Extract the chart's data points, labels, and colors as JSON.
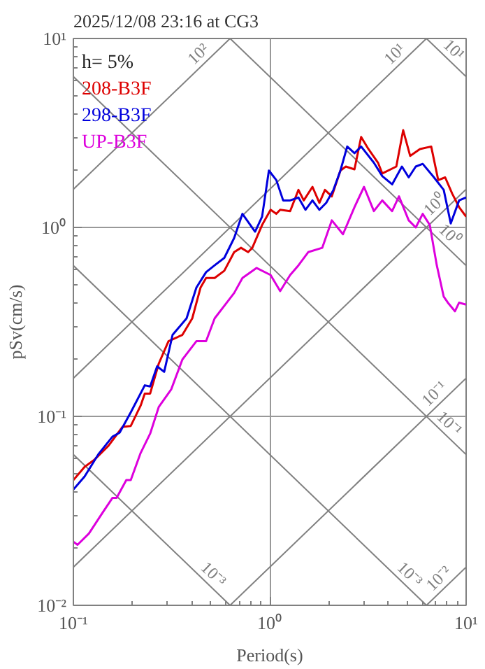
{
  "chart_data": {
    "type": "line",
    "title": "2025/12/08 23:16 at CG3",
    "xlabel": "Period(s)",
    "ylabel": "pSv(cm/s)",
    "legend_title": "h= 5%",
    "legend": "top left",
    "log": "xy",
    "grid": true,
    "xlim": [
      0.1,
      10
    ],
    "ylim": [
      0.01,
      10
    ],
    "xticks": [
      {
        "value": 0.1,
        "label": "10⁻¹"
      },
      {
        "value": 1,
        "label": "10⁰"
      },
      {
        "value": 10,
        "label": "10¹"
      }
    ],
    "yticks": [
      {
        "value": 0.01,
        "label": "10⁻²"
      },
      {
        "value": 0.1,
        "label": "10⁻¹"
      },
      {
        "value": 1,
        "label": "10⁰"
      },
      {
        "value": 10,
        "label": "10¹"
      }
    ],
    "series": [
      {
        "type": "line",
        "color": "#808080",
        "x": [
          0.1,
          0.628
        ],
        "values": [
          1.592,
          10
        ]
      },
      {
        "type": "line",
        "color": "#808080",
        "x": [
          0.1,
          6.28
        ],
        "values": [
          0.1592,
          10
        ]
      },
      {
        "type": "line",
        "color": "#808080",
        "x": [
          0.1,
          10
        ],
        "values": [
          0.01592,
          1.592
        ]
      },
      {
        "type": "line",
        "color": "#808080",
        "x": [
          0.628,
          10
        ],
        "values": [
          0.01,
          0.1592
        ]
      },
      {
        "type": "line",
        "color": "#808080",
        "x": [
          6.28,
          10
        ],
        "values": [
          0.01,
          0.01592
        ]
      },
      {
        "type": "line",
        "color": "#808080",
        "x": [
          6.28,
          10
        ],
        "values": [
          10,
          6.28
        ]
      },
      {
        "type": "line",
        "color": "#808080",
        "x": [
          0.628,
          10
        ],
        "values": [
          10,
          0.628
        ]
      },
      {
        "type": "line",
        "color": "#808080",
        "x": [
          0.1,
          10
        ],
        "values": [
          6.28,
          0.0628
        ]
      },
      {
        "type": "line",
        "color": "#808080",
        "x": [
          0.1,
          6.28
        ],
        "values": [
          0.628,
          0.01
        ]
      },
      {
        "type": "line",
        "color": "#808080",
        "x": [
          0.1,
          0.628
        ],
        "values": [
          0.0628,
          0.01
        ]
      },
      {
        "name": "208-B3F",
        "color": "#dd0000",
        "x": [
          0.1,
          0.114,
          0.128,
          0.151,
          0.178,
          0.196,
          0.22,
          0.231,
          0.246,
          0.272,
          0.305,
          0.359,
          0.403,
          0.444,
          0.474,
          0.524,
          0.587,
          0.659,
          0.714,
          0.776,
          0.815,
          0.914,
          1.01,
          1.08,
          1.13,
          1.27,
          1.4,
          1.49,
          1.65,
          1.79,
          1.91,
          2.07,
          2.29,
          2.44,
          2.7,
          2.92,
          3.18,
          3.56,
          3.74,
          4.41,
          4.78,
          5.19,
          5.82,
          6.64,
          7.21,
          7.82,
          8.49,
          9.21,
          10
        ],
        "values": [
          0.046,
          0.054,
          0.059,
          0.07,
          0.088,
          0.089,
          0.114,
          0.132,
          0.132,
          0.19,
          0.25,
          0.27,
          0.33,
          0.48,
          0.54,
          0.54,
          0.59,
          0.74,
          0.78,
          0.74,
          0.78,
          1.03,
          1.24,
          1.18,
          1.24,
          1.22,
          1.58,
          1.39,
          1.64,
          1.35,
          1.58,
          1.46,
          2.0,
          2.1,
          2.03,
          3.01,
          2.6,
          2.2,
          1.93,
          2.1,
          3.27,
          2.39,
          2.6,
          2.68,
          1.78,
          1.84,
          1.51,
          1.28,
          1.14
        ]
      },
      {
        "name": "298-B3F",
        "color": "#0000dd",
        "x": [
          0.1,
          0.114,
          0.134,
          0.158,
          0.172,
          0.196,
          0.231,
          0.246,
          0.267,
          0.29,
          0.32,
          0.377,
          0.423,
          0.474,
          0.524,
          0.587,
          0.659,
          0.726,
          0.842,
          0.914,
          0.99,
          1.08,
          1.17,
          1.27,
          1.4,
          1.52,
          1.65,
          1.79,
          1.94,
          2.11,
          2.29,
          2.48,
          2.7,
          2.92,
          3.39,
          3.74,
          4.2,
          4.71,
          5.1,
          5.54,
          6.01,
          6.86,
          7.69,
          8.35,
          9.21,
          10
        ],
        "values": [
          0.041,
          0.048,
          0.063,
          0.078,
          0.082,
          0.105,
          0.146,
          0.144,
          0.184,
          0.172,
          0.27,
          0.33,
          0.48,
          0.58,
          0.63,
          0.69,
          0.88,
          1.18,
          0.95,
          1.14,
          2.0,
          1.78,
          1.39,
          1.39,
          1.44,
          1.24,
          1.39,
          1.24,
          1.35,
          1.58,
          2.0,
          2.68,
          2.47,
          2.68,
          2.2,
          1.87,
          1.69,
          2.1,
          1.84,
          2.1,
          2.17,
          1.84,
          1.58,
          1.05,
          1.39,
          1.44
        ]
      },
      {
        "name": "UP-B3F",
        "color": "#dd00dd",
        "x": [
          0.1,
          0.105,
          0.12,
          0.141,
          0.158,
          0.166,
          0.186,
          0.196,
          0.22,
          0.246,
          0.272,
          0.315,
          0.359,
          0.423,
          0.474,
          0.524,
          0.659,
          0.726,
          0.856,
          1.01,
          1.13,
          1.27,
          1.4,
          1.57,
          1.85,
          2.07,
          2.36,
          2.7,
          3.02,
          3.39,
          3.74,
          4.2,
          4.55,
          5.1,
          5.54,
          6.01,
          6.53,
          7.09,
          7.69,
          8.07,
          8.77,
          9.21,
          10
        ],
        "values": [
          0.0217,
          0.0209,
          0.024,
          0.031,
          0.037,
          0.037,
          0.046,
          0.046,
          0.064,
          0.081,
          0.112,
          0.139,
          0.2,
          0.25,
          0.25,
          0.33,
          0.45,
          0.54,
          0.61,
          0.56,
          0.46,
          0.56,
          0.63,
          0.74,
          0.78,
          1.09,
          0.92,
          1.28,
          1.64,
          1.22,
          1.39,
          1.22,
          1.46,
          1.09,
          1.0,
          1.18,
          1.03,
          0.63,
          0.43,
          0.4,
          0.36,
          0.4,
          0.39
        ]
      }
    ],
    "annotations": [
      "10²",
      "10¹",
      "10⁰",
      "10⁻¹",
      "10⁻²",
      "10¹",
      "10⁰",
      "10⁻¹",
      "10⁻³",
      "10⁻³"
    ]
  }
}
